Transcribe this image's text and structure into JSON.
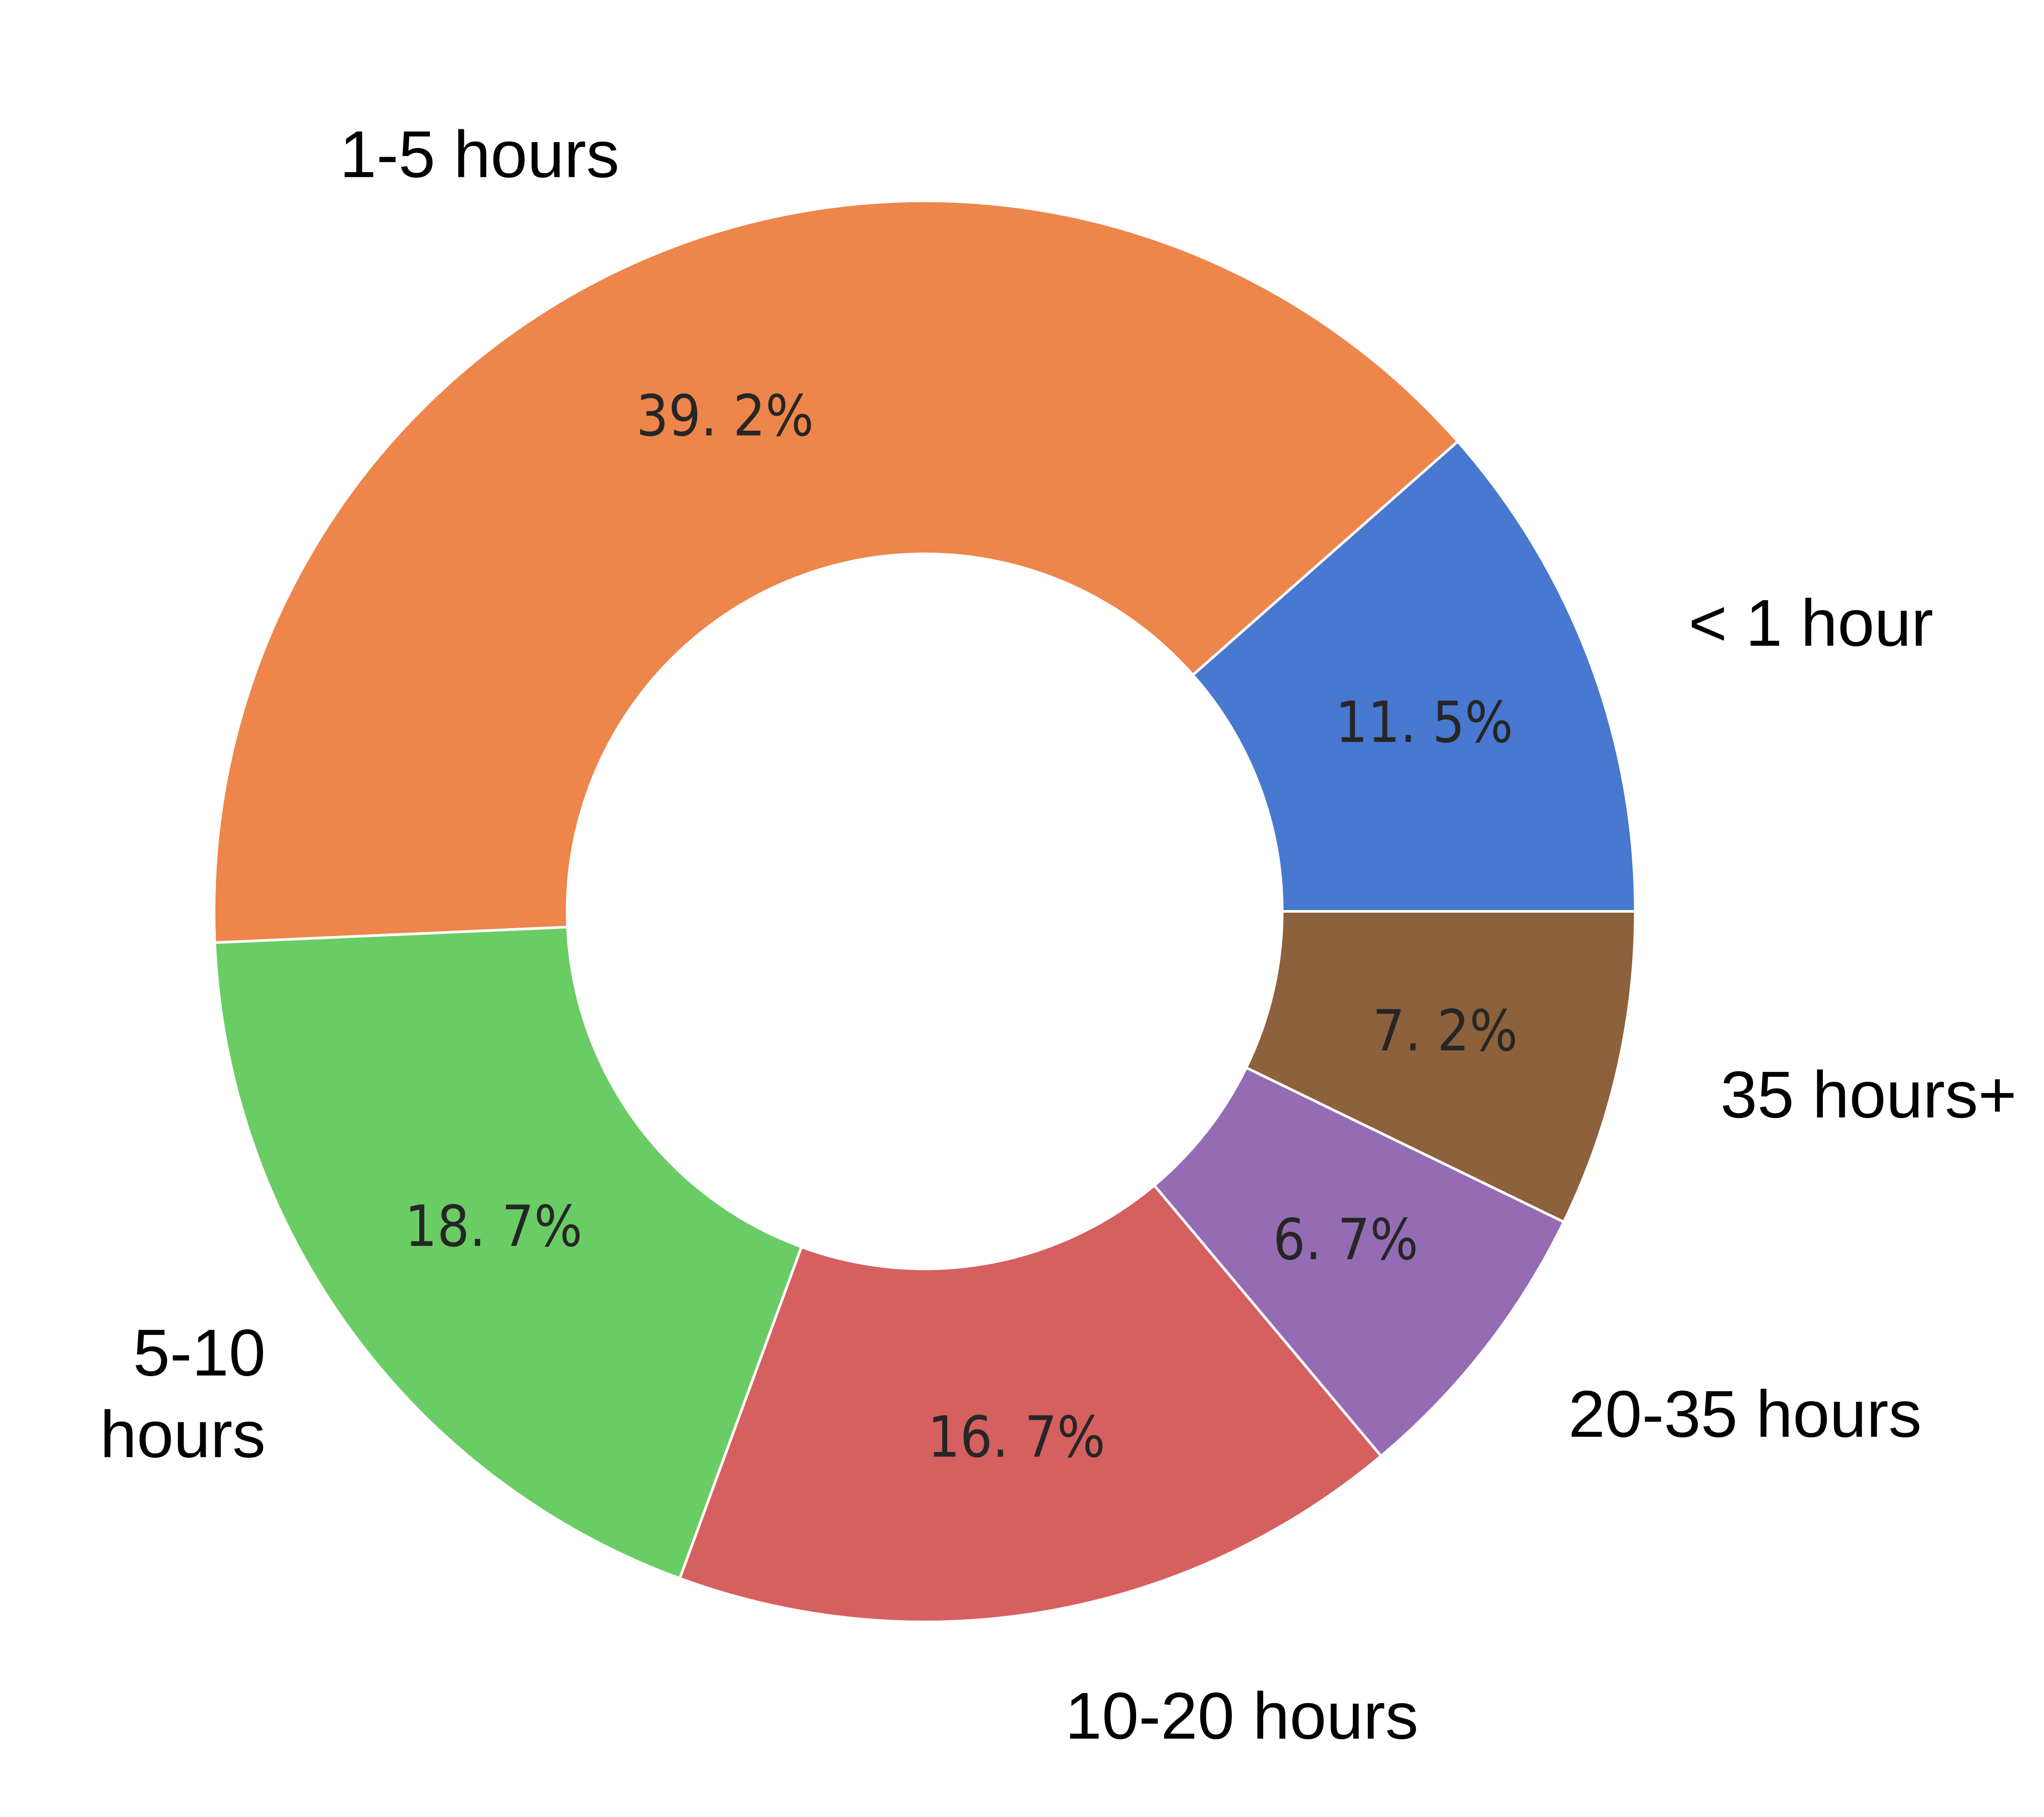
{
  "chart_data": {
    "type": "pie",
    "donut": true,
    "title": "",
    "slices": [
      {
        "label": "< 1 hour",
        "label_lines": [
          "< 1 hour"
        ],
        "value": 11.5,
        "value_label": "11. 5%",
        "color": "#4878D0"
      },
      {
        "label": "1-5 hours",
        "label_lines": [
          "1-5 hours"
        ],
        "value": 39.2,
        "value_label": "39. 2%",
        "color": "#EE854A"
      },
      {
        "label": "5-10 hours",
        "label_lines": [
          "5-10",
          "hours"
        ],
        "value": 18.7,
        "value_label": "18. 7%",
        "color": "#6ACC64"
      },
      {
        "label": "10-20 hours",
        "label_lines": [
          "10-20 hours"
        ],
        "value": 16.7,
        "value_label": "16. 7%",
        "color": "#D65F5F"
      },
      {
        "label": "20-35 hours",
        "label_lines": [
          "20-35 hours"
        ],
        "value": 6.7,
        "value_label": "6. 7%",
        "color": "#956CB4"
      },
      {
        "label": "35 hours+",
        "label_lines": [
          "35 hours+"
        ],
        "value": 7.2,
        "value_label": "7. 2%",
        "color": "#8C613C"
      }
    ],
    "start_angle_deg": 0,
    "direction": "counterclockwise",
    "legend": "none"
  }
}
